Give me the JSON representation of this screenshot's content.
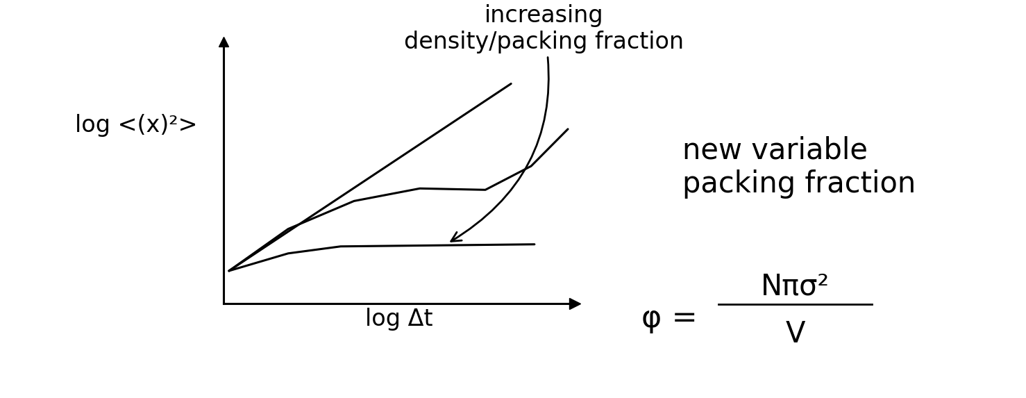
{
  "chart_data": {
    "type": "line",
    "x_label": "log Δt",
    "y_label": "log <(x)²>",
    "annotation": "increasing\ndensity/packing fraction",
    "side_note": "new variable\npacking fraction",
    "formula": {
      "lhs": "φ =",
      "numerator": "Nπσ²",
      "denominator": "V"
    },
    "series": [
      {
        "color": "#000000",
        "x": [
          0.16,
          8.6
        ],
        "values": [
          0.94,
          6.3
        ]
      },
      {
        "color": "#000000",
        "x": [
          0.16,
          1.93,
          3.9,
          5.87,
          7.83,
          9.2,
          10.3
        ],
        "values": [
          0.94,
          2.14,
          2.94,
          3.3,
          3.26,
          3.94,
          5.0
        ]
      },
      {
        "color": "#000000",
        "x": [
          0.16,
          1.93,
          3.5,
          9.3
        ],
        "values": [
          0.94,
          1.44,
          1.64,
          1.7
        ]
      }
    ],
    "xlim": [
      0,
      10.5
    ],
    "ylim": [
      0,
      7.5
    ],
    "xticks": [],
    "yticks": [],
    "tick_labels": false,
    "grid": false
  }
}
